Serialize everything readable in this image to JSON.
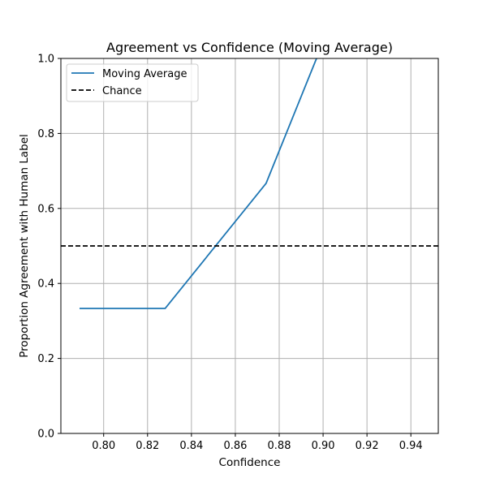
{
  "chart_data": {
    "type": "line",
    "title": "Agreement vs Confidence (Moving Average)",
    "xlabel": "Confidence",
    "ylabel": "Proportion Agreement with Human Label",
    "xlim": [
      0.7805,
      0.9525
    ],
    "ylim": [
      0.0,
      1.0
    ],
    "xticks": [
      "0.80",
      "0.82",
      "0.84",
      "0.86",
      "0.88",
      "0.90",
      "0.92",
      "0.94"
    ],
    "yticks": [
      "0.0",
      "0.2",
      "0.4",
      "0.6",
      "0.8",
      "1.0"
    ],
    "grid": true,
    "legend_position": "upper-left",
    "series": [
      {
        "name": "Moving Average",
        "color": "#1f77b4",
        "style": "solid",
        "x": [
          0.789,
          0.828,
          0.874,
          0.897
        ],
        "y": [
          0.3333,
          0.3333,
          0.6667,
          1.0
        ]
      },
      {
        "name": "Chance",
        "color": "#000000",
        "style": "dashed",
        "y_const": 0.5
      }
    ]
  }
}
